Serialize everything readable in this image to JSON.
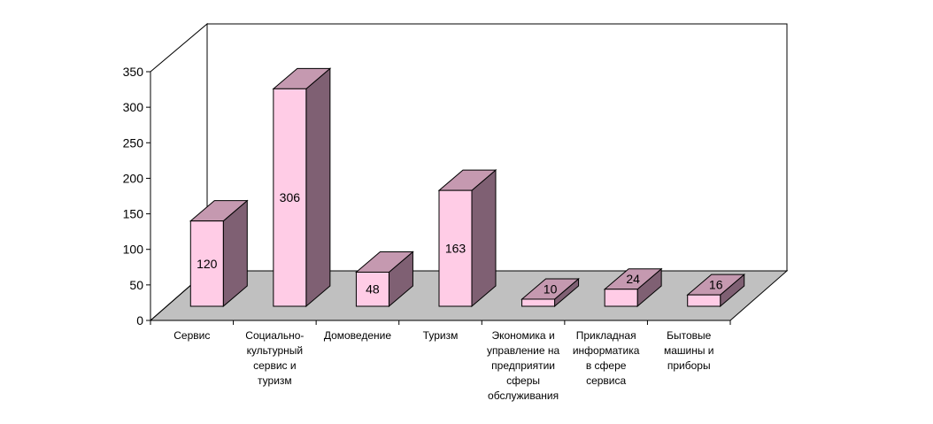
{
  "chart_data": {
    "type": "bar",
    "title": "",
    "xlabel": "",
    "ylabel": "",
    "ylim": [
      0,
      350
    ],
    "yticks": [
      0,
      50,
      100,
      150,
      200,
      250,
      300,
      350
    ],
    "ytick_labels": [
      "0",
      "50",
      "100",
      "150",
      "200",
      "250",
      "300",
      "350"
    ],
    "grid": false,
    "legend": "none",
    "style": "3d-column",
    "categories": [
      [
        "Сервис"
      ],
      [
        "Социально-",
        "культурный",
        "сервис и",
        "туризм"
      ],
      [
        "Домоведение"
      ],
      [
        "Туризм"
      ],
      [
        "Экономика и",
        "управление на",
        "предприятии",
        "сферы",
        "обслуживания"
      ],
      [
        "Прикладная",
        "информатика",
        "в сфере",
        "сервиса"
      ],
      [
        "Бытовые",
        "машины и",
        "приборы"
      ]
    ],
    "series": [
      {
        "values": [
          120,
          306,
          48,
          163,
          10,
          24,
          16
        ],
        "labels": [
          "120",
          "306",
          "48",
          "163",
          "10",
          "24",
          "16"
        ]
      }
    ],
    "colors": {
      "bar_front": "#ffcce6",
      "bar_top": "#c599b0",
      "bar_side": "#7f6073",
      "floor": "#c0c0c0",
      "outline": "#000000"
    }
  }
}
